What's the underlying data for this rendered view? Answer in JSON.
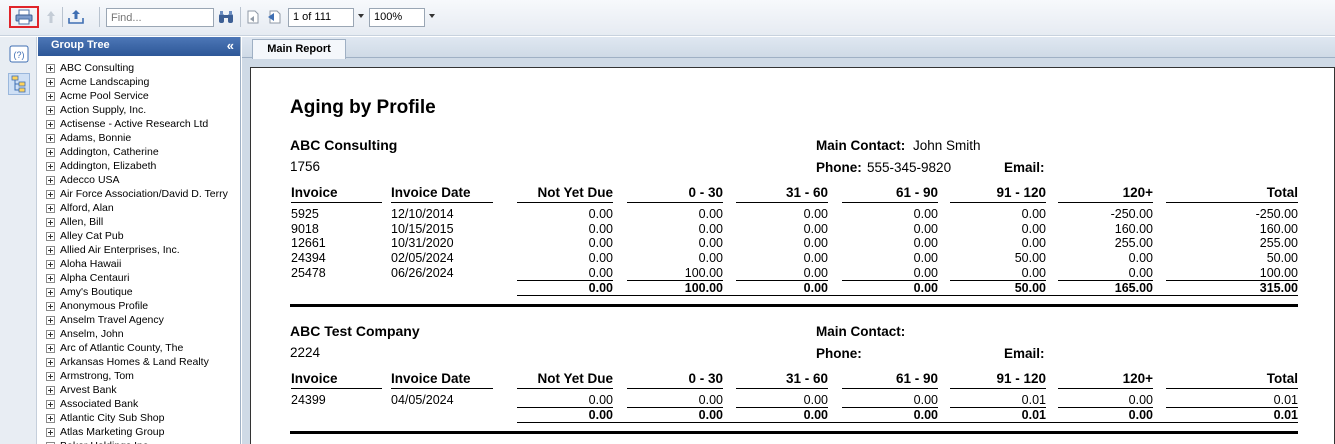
{
  "toolbar": {
    "print_icon": "printer-icon",
    "up_icon": "arrow-up-icon",
    "export_icon": "export-icon",
    "find_placeholder": "Find...",
    "search_icon": "binoculars-icon",
    "first_page_icon": "first-page-icon",
    "prev_page_icon": "prev-page-icon",
    "page_value": "1 of 111",
    "zoom_value": "100%"
  },
  "rail": {
    "help_icon": "help-icon",
    "tree_icon": "group-tree-icon",
    "help_label": "(?)"
  },
  "tree": {
    "header": "Group Tree",
    "collapse": "«",
    "items": [
      "ABC Consulting",
      "Acme Landscaping",
      "Acme Pool Service",
      "Action Supply, Inc.",
      "Actisense - Active Research Ltd",
      "Adams, Bonnie",
      "Addington, Catherine",
      "Addington, Elizabeth",
      "Adecco USA",
      "Air Force Association/David D. Terry",
      "Alford, Alan",
      "Allen, Bill",
      "Alley Cat Pub",
      "Allied Air Enterprises, Inc.",
      "Aloha Hawaii",
      "Alpha Centauri",
      "Amy's Boutique",
      "Anonymous Profile",
      "Anselm Travel Agency",
      "Anselm, John",
      "Arc of Atlantic County, The",
      "Arkansas Homes & Land Realty",
      "Armstrong, Tom",
      "Arvest Bank",
      "Associated Bank",
      "Atlantic City Sub Shop",
      "Atlas Marketing Group",
      "Baker Holdings Inc"
    ]
  },
  "tab": {
    "label": "Main Report"
  },
  "report": {
    "title": "Aging by Profile",
    "labels": {
      "main_contact": "Main Contact:",
      "phone": "Phone:",
      "email": "Email:"
    },
    "columns": [
      "Invoice",
      "Invoice Date",
      "Not Yet Due",
      "0 - 30",
      "31 - 60",
      "61 - 90",
      "91 - 120",
      "120+",
      "Total"
    ],
    "groups": [
      {
        "name": "ABC Consulting",
        "id": "1756",
        "contact": "John Smith",
        "phone": "555-345-9820",
        "email": "",
        "rows": [
          [
            "5925",
            "12/10/2014",
            "0.00",
            "0.00",
            "0.00",
            "0.00",
            "0.00",
            "-250.00",
            "-250.00"
          ],
          [
            "9018",
            "10/15/2015",
            "0.00",
            "0.00",
            "0.00",
            "0.00",
            "0.00",
            "160.00",
            "160.00"
          ],
          [
            "12661",
            "10/31/2020",
            "0.00",
            "0.00",
            "0.00",
            "0.00",
            "0.00",
            "255.00",
            "255.00"
          ],
          [
            "24394",
            "02/05/2024",
            "0.00",
            "0.00",
            "0.00",
            "0.00",
            "50.00",
            "0.00",
            "50.00"
          ],
          [
            "25478",
            "06/26/2024",
            "0.00",
            "100.00",
            "0.00",
            "0.00",
            "0.00",
            "0.00",
            "100.00"
          ]
        ],
        "totals": [
          "0.00",
          "100.00",
          "0.00",
          "0.00",
          "50.00",
          "165.00",
          "315.00"
        ]
      },
      {
        "name": "ABC Test Company",
        "id": "2224",
        "contact": "",
        "phone": "",
        "email": "",
        "rows": [
          [
            "24399",
            "04/05/2024",
            "0.00",
            "0.00",
            "0.00",
            "0.00",
            "0.01",
            "0.00",
            "0.01"
          ]
        ],
        "totals": [
          "0.00",
          "0.00",
          "0.00",
          "0.00",
          "0.01",
          "0.00",
          "0.01"
        ]
      }
    ]
  }
}
